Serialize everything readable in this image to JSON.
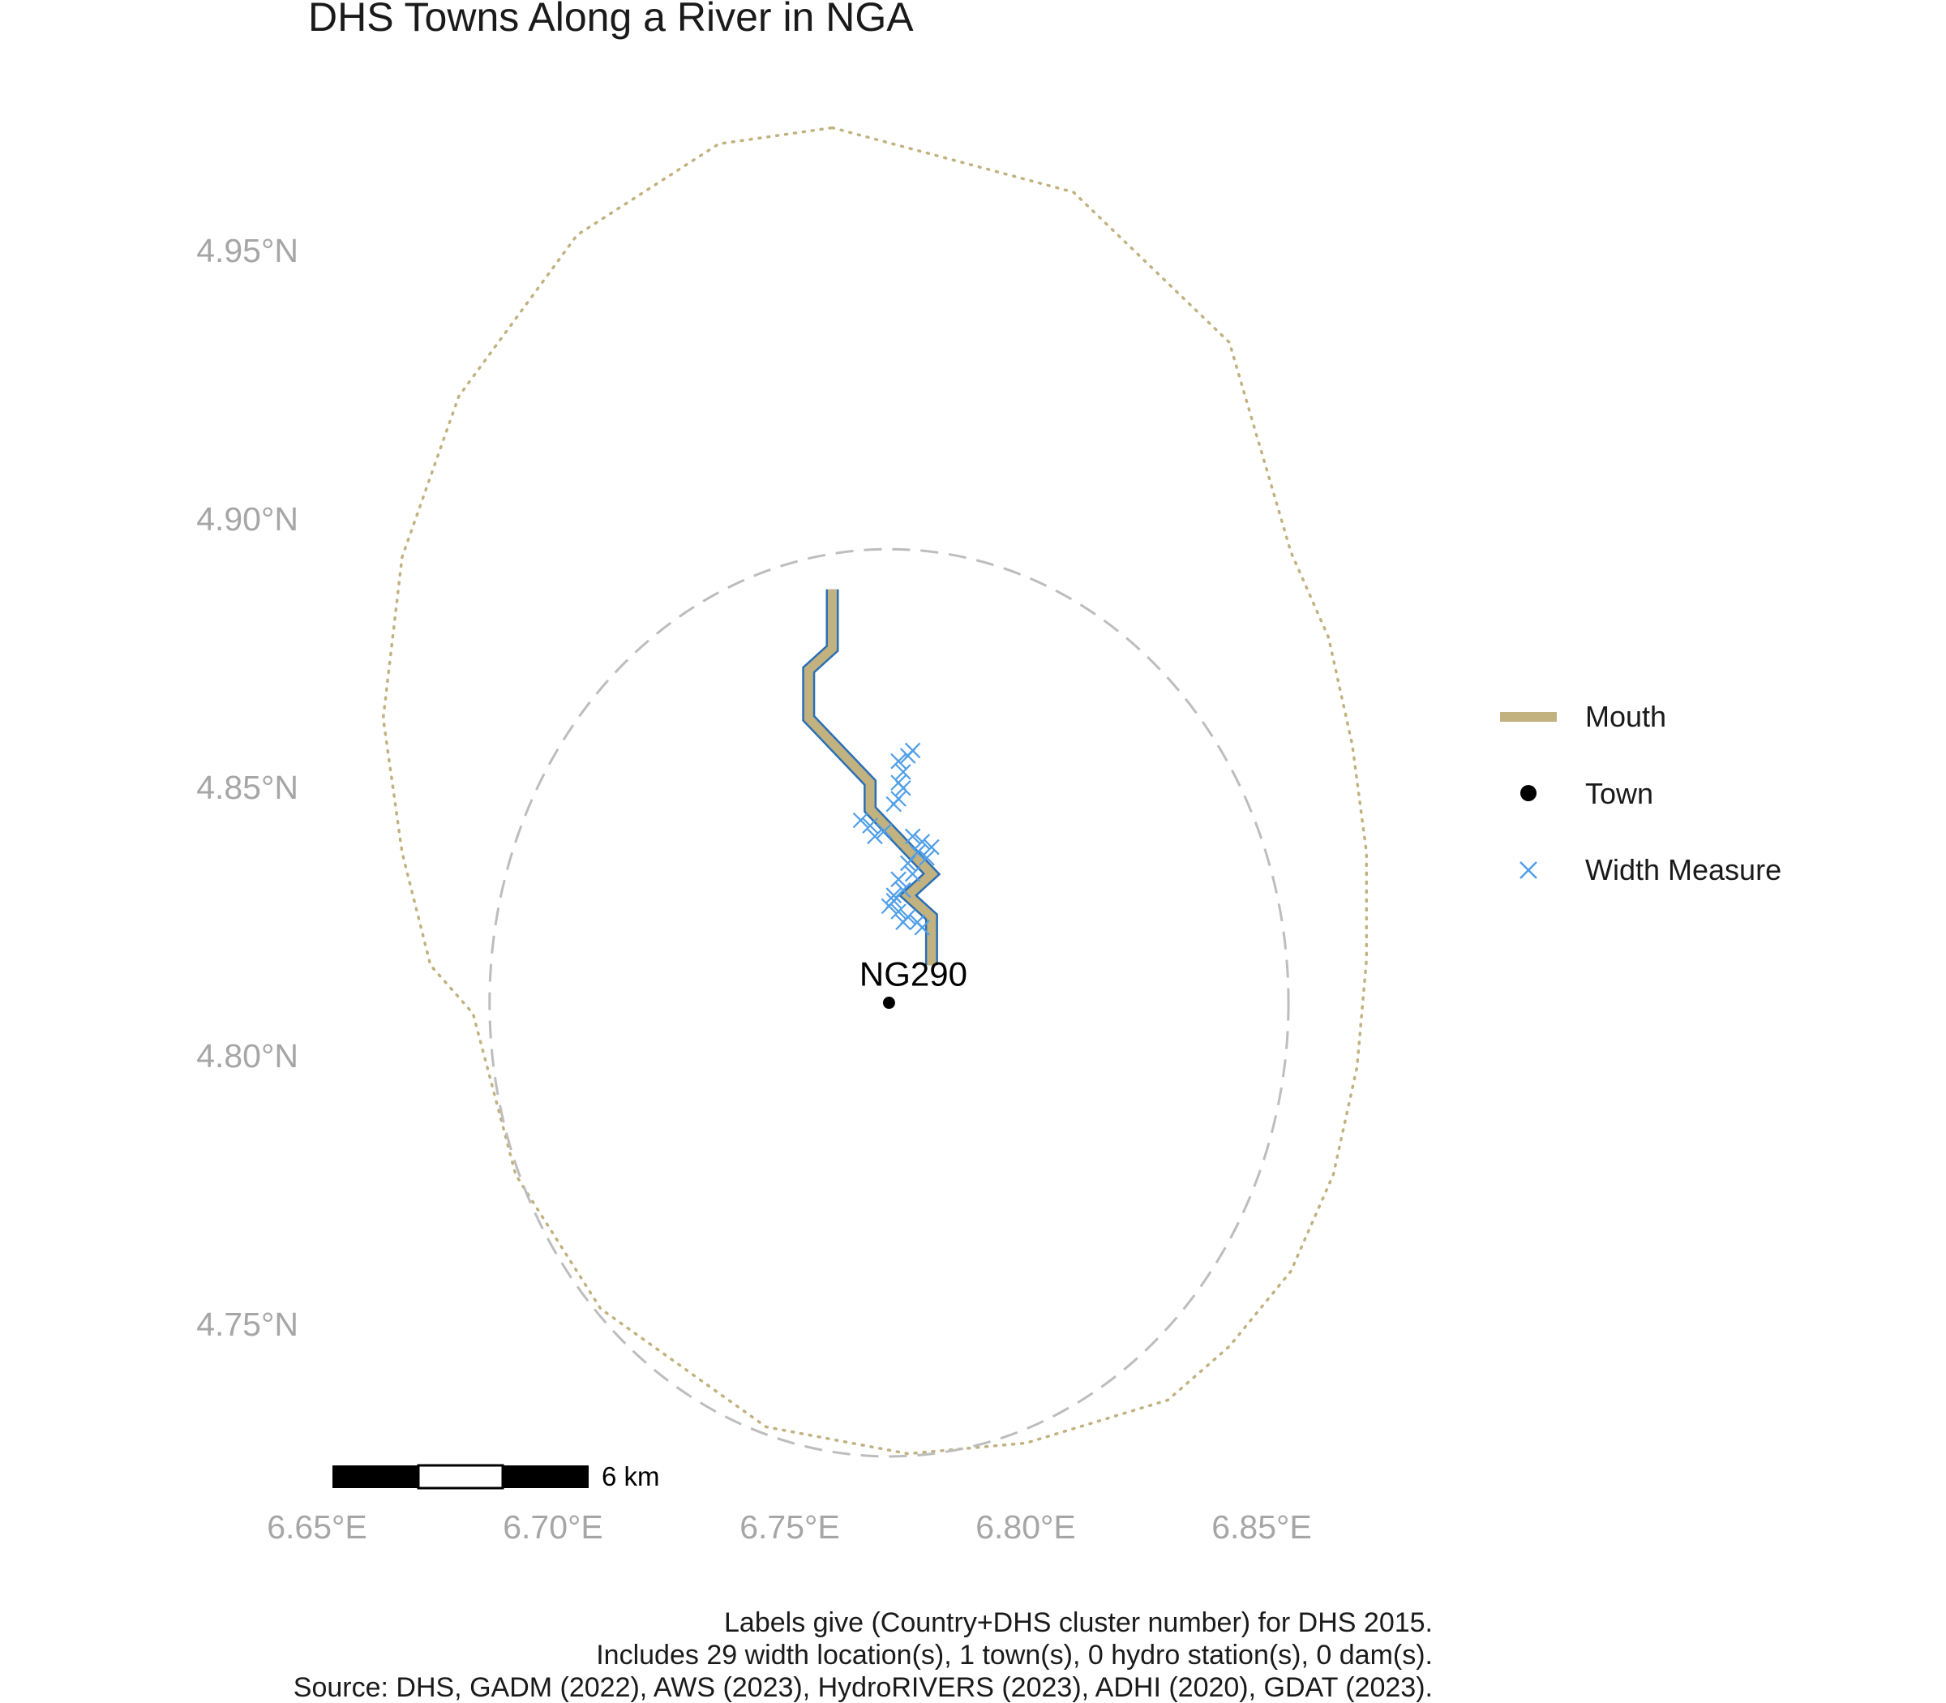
{
  "title": "DHS Towns Along a River in NGA",
  "x_ticks": [
    "6.65°E",
    "6.70°E",
    "6.75°E",
    "6.80°E",
    "6.85°E"
  ],
  "y_ticks": [
    "4.95°N",
    "4.90°N",
    "4.85°N",
    "4.80°N",
    "4.75°N"
  ],
  "legend": [
    {
      "label": "Mouth",
      "symbol": "line",
      "color": "#c2b280"
    },
    {
      "label": "Town",
      "symbol": "dot",
      "color": "#000000"
    },
    {
      "label": "Width Measure",
      "symbol": "cross",
      "color": "#4f9ee8"
    }
  ],
  "town": {
    "label": "NG290",
    "lon": 6.771,
    "lat": 4.812
  },
  "scale_bar": {
    "label": "6 km"
  },
  "caption": [
    "Labels give (Country+DHS cluster number) for DHS 2015.",
    "Includes 29 width location(s), 1 town(s), 0 hydro station(s), 0 dam(s).",
    "Source: DHS, GADM (2022), AWS (2023), HydroRIVERS (2023), ADHI (2020), GDAT (2023)."
  ],
  "colors": {
    "river_fill": "#c2b280",
    "river_outline": "#2a6fb5",
    "width_measure": "#4f9ee8",
    "dashed_circle": "#bdbdbd",
    "dotted_circle": "#c2b280",
    "tick_text": "#a6a6a6"
  },
  "chart_data": {
    "type": "map",
    "title": "DHS Towns Along a River in NGA",
    "xlim": [
      6.633,
      6.886
    ],
    "ylim": [
      4.722,
      4.975
    ],
    "river": [
      [
        6.759,
        4.889
      ],
      [
        6.759,
        4.878
      ],
      [
        6.754,
        4.874
      ],
      [
        6.754,
        4.865
      ],
      [
        6.767,
        4.853
      ],
      [
        6.767,
        4.848
      ],
      [
        6.78,
        4.836
      ],
      [
        6.775,
        4.832
      ],
      [
        6.78,
        4.828
      ],
      [
        6.78,
        4.819
      ]
    ],
    "width_measures": [
      [
        6.776,
        4.859
      ],
      [
        6.775,
        4.858
      ],
      [
        6.773,
        4.857
      ],
      [
        6.774,
        4.855
      ],
      [
        6.773,
        4.853
      ],
      [
        6.774,
        4.852
      ],
      [
        6.773,
        4.85
      ],
      [
        6.772,
        4.849
      ],
      [
        6.765,
        4.846
      ],
      [
        6.767,
        4.845
      ],
      [
        6.768,
        4.843
      ],
      [
        6.77,
        4.844
      ],
      [
        6.776,
        4.843
      ],
      [
        6.778,
        4.842
      ],
      [
        6.78,
        4.841
      ],
      [
        6.777,
        4.84
      ],
      [
        6.779,
        4.839
      ],
      [
        6.775,
        4.838
      ],
      [
        6.776,
        4.836
      ],
      [
        6.773,
        4.835
      ],
      [
        6.774,
        4.833
      ],
      [
        6.772,
        4.832
      ],
      [
        6.771,
        4.83
      ],
      [
        6.773,
        4.829
      ],
      [
        6.775,
        4.828
      ],
      [
        6.777,
        4.827
      ],
      [
        6.774,
        4.827
      ],
      [
        6.778,
        4.826
      ],
      [
        6.772,
        4.831
      ]
    ],
    "town": {
      "label": "NG290",
      "lon": 6.771,
      "lat": 4.812
    },
    "dashed_circle": {
      "lon": 6.771,
      "lat": 4.812,
      "radius_deg": 0.0845
    },
    "dotted_boundary": [
      [
        6.759,
        4.975
      ],
      [
        6.81,
        4.963
      ],
      [
        6.843,
        4.935
      ],
      [
        6.856,
        4.896
      ],
      [
        6.864,
        4.88
      ],
      [
        6.869,
        4.86
      ],
      [
        6.872,
        4.84
      ],
      [
        6.872,
        4.82
      ],
      [
        6.87,
        4.8
      ],
      [
        6.865,
        4.78
      ],
      [
        6.856,
        4.762
      ],
      [
        6.843,
        4.748
      ],
      [
        6.83,
        4.738
      ],
      [
        6.8,
        4.73
      ],
      [
        6.775,
        4.728
      ],
      [
        6.745,
        4.733
      ],
      [
        6.71,
        4.755
      ],
      [
        6.692,
        4.78
      ],
      [
        6.686,
        4.8
      ],
      [
        6.683,
        4.81
      ],
      [
        6.674,
        4.819
      ],
      [
        6.668,
        4.84
      ],
      [
        6.664,
        4.865
      ],
      [
        6.668,
        4.895
      ],
      [
        6.68,
        4.925
      ],
      [
        6.705,
        4.955
      ],
      [
        6.735,
        4.972
      ],
      [
        6.759,
        4.975
      ]
    ]
  }
}
